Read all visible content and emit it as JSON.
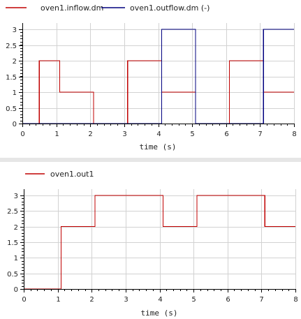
{
  "chart_data": [
    {
      "type": "line",
      "step": true,
      "xlabel": "time (s)",
      "ylabel": "",
      "xlim": [
        0,
        8
      ],
      "ylim": [
        0,
        3.2
      ],
      "xticks": [
        "0",
        "1",
        "2",
        "3",
        "4",
        "5",
        "6",
        "7",
        "8"
      ],
      "yticks": [
        "0",
        "0.5",
        "1",
        "1.5",
        "2",
        "2.5",
        "3"
      ],
      "grid": true,
      "legend_position": "top-left",
      "series": [
        {
          "name": "oven1.inflow.dm",
          "color": "#c00000",
          "points": [
            [
              0,
              0
            ],
            [
              0.5,
              0
            ],
            [
              0.5,
              2
            ],
            [
              1.1,
              2
            ],
            [
              1.1,
              1
            ],
            [
              2.1,
              1
            ],
            [
              2.1,
              0
            ],
            [
              3.1,
              0
            ],
            [
              3.1,
              2
            ],
            [
              4.1,
              2
            ],
            [
              4.1,
              1
            ],
            [
              5.1,
              1
            ],
            [
              5.1,
              0
            ],
            [
              6.1,
              0
            ],
            [
              6.1,
              2
            ],
            [
              7.1,
              2
            ],
            [
              7.1,
              1
            ],
            [
              8,
              1
            ]
          ]
        },
        {
          "name": "oven1.outflow.dm (-)",
          "color": "#00007f",
          "points": [
            [
              0,
              0
            ],
            [
              4.1,
              0
            ],
            [
              4.1,
              3
            ],
            [
              5.1,
              3
            ],
            [
              5.1,
              0
            ],
            [
              7.1,
              0
            ],
            [
              7.1,
              3
            ],
            [
              8,
              3
            ]
          ]
        }
      ]
    },
    {
      "type": "line",
      "step": true,
      "xlabel": "time (s)",
      "ylabel": "",
      "xlim": [
        0,
        8
      ],
      "ylim": [
        0,
        3.2
      ],
      "xticks": [
        "0",
        "1",
        "2",
        "3",
        "4",
        "5",
        "6",
        "7",
        "8"
      ],
      "yticks": [
        "0",
        "0.5",
        "1",
        "1.5",
        "2",
        "2.5",
        "3"
      ],
      "grid": true,
      "legend_position": "top-left",
      "series": [
        {
          "name": "oven1.out1",
          "color": "#c00000",
          "points": [
            [
              0,
              0
            ],
            [
              1.1,
              0
            ],
            [
              1.1,
              2
            ],
            [
              2.1,
              2
            ],
            [
              2.1,
              3
            ],
            [
              4.1,
              3
            ],
            [
              4.1,
              2
            ],
            [
              5.1,
              2
            ],
            [
              5.1,
              3
            ],
            [
              7.1,
              3
            ],
            [
              7.1,
              2
            ],
            [
              8,
              2
            ]
          ]
        }
      ]
    }
  ]
}
